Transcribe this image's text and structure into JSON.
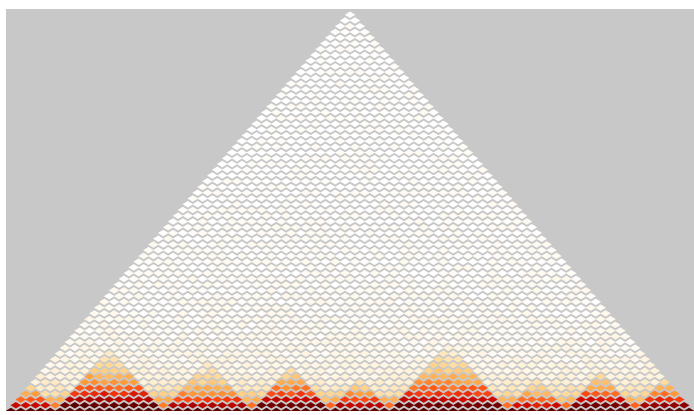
{
  "chart_data": {
    "type": "heatmap",
    "subtype": "hic-contact-triangle",
    "colors": {
      "background": "#c8c8c8",
      "frame": "#ffffff",
      "colormap": [
        "#ffffff",
        "#fff1d6",
        "#ffd38a",
        "#ff9d3a",
        "#ff4a12",
        "#d10a00",
        "#8e0000",
        "#5a0000"
      ]
    },
    "diagonal_bins": 70,
    "domains": [
      {
        "start": 0,
        "end": 5,
        "peak": 0.55
      },
      {
        "start": 5,
        "end": 16,
        "peak": 0.95
      },
      {
        "start": 16,
        "end": 25,
        "peak": 0.55
      },
      {
        "start": 25,
        "end": 33,
        "peak": 0.9
      },
      {
        "start": 33,
        "end": 39,
        "peak": 0.55
      },
      {
        "start": 39,
        "end": 51,
        "peak": 0.85
      },
      {
        "start": 51,
        "end": 57,
        "peak": 0.4
      },
      {
        "start": 57,
        "end": 64,
        "peak": 0.85
      },
      {
        "start": 64,
        "end": 70,
        "peak": 0.7
      }
    ]
  }
}
